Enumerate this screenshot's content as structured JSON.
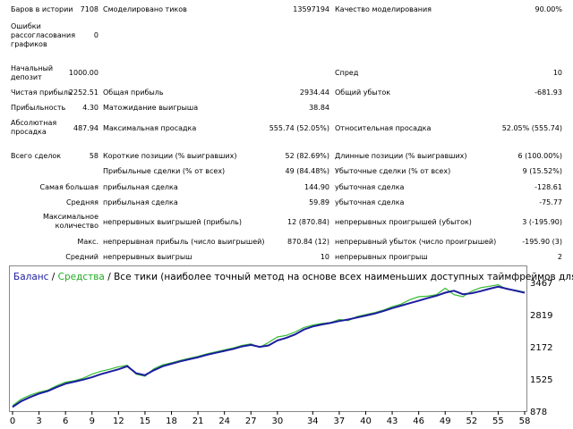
{
  "report": {
    "bars_label": "Баров в истории",
    "bars_value": "7108",
    "ticks_label": "Смоделировано тиков",
    "ticks_value": "13597194",
    "quality_label": "Качество моделирования",
    "quality_value": "90.00%",
    "errors_label": "Ошибки рассогласования графиков",
    "errors_value": "0",
    "deposit_label": "Начальный депозит",
    "deposit_value": "1000.00",
    "spread_label": "Спред",
    "spread_value": "10",
    "net_profit_label": "Чистая прибыль",
    "net_profit_value": "2252.51",
    "gross_profit_label": "Общая прибыль",
    "gross_profit_value": "2934.44",
    "gross_loss_label": "Общий убыток",
    "gross_loss_value": "-681.93",
    "profit_factor_label": "Прибыльность",
    "profit_factor_value": "4.30",
    "expected_payoff_label": "Матожидание выигрыша",
    "expected_payoff_value": "38.84",
    "abs_dd_label": "Абсолютная просадка",
    "abs_dd_value": "487.94",
    "max_dd_label": "Максимальная просадка",
    "max_dd_value": "555.74 (52.05%)",
    "rel_dd_label": "Относительная просадка",
    "rel_dd_value": "52.05% (555.74)",
    "total_trades_label": "Всего сделок",
    "total_trades_value": "58",
    "short_label": "Короткие позиции (% выигравших)",
    "short_value": "52 (82.69%)",
    "long_label": "Длинные позиции (% выигравших)",
    "long_value": "6 (100.00%)",
    "profit_trades_label": "Прибыльные сделки (% от всех)",
    "profit_trades_value": "49 (84.48%)",
    "loss_trades_label": "Убыточные сделки (% от всех)",
    "loss_trades_value": "9 (15.52%)",
    "largest_label": "Самая большая",
    "largest_profit_label": "прибыльная сделка",
    "largest_profit_value": "144.90",
    "largest_loss_label": "убыточная сделка",
    "largest_loss_value": "-128.61",
    "average_label": "Средняя",
    "average_profit_label": "прибыльная сделка",
    "average_profit_value": "59.89",
    "average_loss_label": "убыточная сделка",
    "average_loss_value": "-75.77",
    "max_count_label": "Максимальное количество",
    "max_cons_wins_label": "непрерывных выигрышей (прибыль)",
    "max_cons_wins_value": "12 (870.84)",
    "max_cons_losses_label": "непрерывных проигрышей (убыток)",
    "max_cons_losses_value": "3 (-195.90)",
    "max_label": "Макс.",
    "max_cons_profit_label": "непрерывная прибыль (число выигрышей)",
    "max_cons_profit_value": "870.84 (12)",
    "max_cons_loss_label": "непрерывный убыток (число проигрышей)",
    "max_cons_loss_value": "-195.90 (3)",
    "avg_label": "Средний",
    "avg_cons_wins_label": "непрерывных выигрыш",
    "avg_cons_wins_value": "10",
    "avg_cons_losses_label": "непрерывных проигрыш",
    "avg_cons_losses_value": "2"
  },
  "chart_data": {
    "type": "line",
    "title_balance": "Баланс",
    "title_sep": " / ",
    "title_equity": "Средства",
    "title_rest": " / Все тики (наиболее точный метод на основе всех наименьших доступных таймфреймов для генерации каждо",
    "x_ticks": [
      "0",
      "3",
      "6",
      "9",
      "12",
      "15",
      "18",
      "21",
      "24",
      "27",
      "30",
      "34",
      "37",
      "40",
      "43",
      "46",
      "49",
      "52",
      "55",
      "58"
    ],
    "y_ticks": [
      "3467",
      "2819",
      "2172",
      "1525",
      "878"
    ],
    "ylim": [
      878,
      3467
    ],
    "xlim": [
      0,
      58
    ],
    "colors": {
      "balance": "#1c1c9e",
      "equity": "#33bb33",
      "title_balance": "#1c1c9e",
      "title_equity": "#22aa22"
    },
    "series": [
      {
        "name": "Баланс",
        "key": "balance",
        "x": [
          0,
          1,
          2,
          3,
          4,
          5,
          6,
          7,
          8,
          9,
          10,
          11,
          12,
          13,
          14,
          15,
          16,
          17,
          18,
          19,
          20,
          21,
          22,
          23,
          24,
          25,
          26,
          27,
          28,
          29,
          30,
          31,
          32,
          33,
          34,
          35,
          36,
          37,
          38,
          39,
          40,
          41,
          42,
          43,
          44,
          45,
          46,
          47,
          48,
          49,
          50,
          51,
          52,
          53,
          54,
          55,
          56,
          57,
          58
        ],
        "y": [
          960,
          1080,
          1160,
          1230,
          1280,
          1360,
          1430,
          1470,
          1510,
          1560,
          1620,
          1670,
          1720,
          1780,
          1640,
          1600,
          1700,
          1780,
          1830,
          1880,
          1920,
          1960,
          2010,
          2050,
          2090,
          2130,
          2180,
          2210,
          2170,
          2200,
          2300,
          2350,
          2420,
          2520,
          2580,
          2620,
          2650,
          2690,
          2720,
          2760,
          2800,
          2840,
          2890,
          2950,
          3000,
          3050,
          3100,
          3150,
          3200,
          3260,
          3300,
          3230,
          3250,
          3290,
          3340,
          3380,
          3340,
          3300,
          3260
        ]
      },
      {
        "name": "Средства",
        "key": "equity",
        "x": [
          0,
          1,
          2,
          3,
          4,
          5,
          6,
          7,
          8,
          9,
          10,
          11,
          12,
          13,
          14,
          15,
          16,
          17,
          18,
          19,
          20,
          21,
          22,
          23,
          24,
          25,
          26,
          27,
          28,
          29,
          30,
          31,
          32,
          33,
          34,
          35,
          36,
          37,
          38,
          39,
          40,
          41,
          42,
          43,
          44,
          45,
          46,
          47,
          48,
          49,
          50,
          51,
          52,
          53,
          54,
          55,
          56,
          57,
          58
        ],
        "y": [
          990,
          1120,
          1200,
          1260,
          1300,
          1390,
          1460,
          1490,
          1540,
          1620,
          1680,
          1720,
          1770,
          1800,
          1620,
          1580,
          1730,
          1810,
          1850,
          1900,
          1940,
          1980,
          2030,
          2070,
          2110,
          2150,
          2200,
          2230,
          2160,
          2260,
          2370,
          2400,
          2470,
          2560,
          2610,
          2640,
          2660,
          2720,
          2700,
          2780,
          2820,
          2860,
          2910,
          2980,
          3030,
          3120,
          3180,
          3190,
          3220,
          3350,
          3220,
          3180,
          3290,
          3360,
          3390,
          3420,
          3330,
          3310,
          3270
        ]
      }
    ]
  }
}
